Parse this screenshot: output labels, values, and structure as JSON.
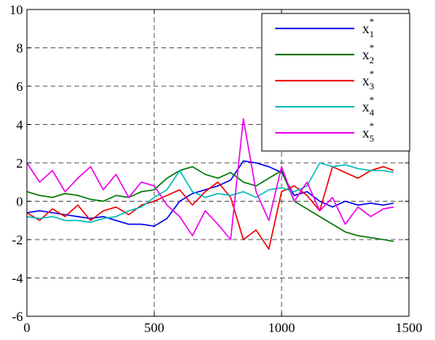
{
  "chart_data": {
    "type": "line",
    "title": "",
    "xlabel": "",
    "ylabel": "",
    "xlim": [
      0,
      1500
    ],
    "ylim": [
      -6,
      10
    ],
    "xticks": [
      0,
      500,
      1000,
      1500
    ],
    "yticks": [
      -6,
      -4,
      -2,
      0,
      2,
      4,
      6,
      8,
      10
    ],
    "grid": true,
    "legend_position": "top-right",
    "x": [
      0,
      50,
      100,
      150,
      200,
      250,
      300,
      350,
      400,
      450,
      500,
      550,
      600,
      650,
      700,
      750,
      800,
      850,
      900,
      950,
      1000,
      1050,
      1100,
      1150,
      1200,
      1250,
      1300,
      1350,
      1400,
      1440
    ],
    "series": [
      {
        "name": "x1*",
        "base": "x",
        "sub": "1",
        "sup": "*",
        "color": "#0000ee",
        "values": [
          -0.6,
          -0.5,
          -0.6,
          -0.7,
          -0.8,
          -0.9,
          -0.8,
          -1.0,
          -1.2,
          -1.2,
          -1.3,
          -0.9,
          0.0,
          0.4,
          0.6,
          0.8,
          1.1,
          2.1,
          2.0,
          1.8,
          1.5,
          0.3,
          0.5,
          0.0,
          -0.3,
          0.0,
          -0.2,
          -0.1,
          -0.2,
          -0.1
        ]
      },
      {
        "name": "x2*",
        "base": "x",
        "sub": "2",
        "sup": "*",
        "color": "#007700",
        "values": [
          0.5,
          0.3,
          0.2,
          0.4,
          0.3,
          0.1,
          0.0,
          0.3,
          0.2,
          0.5,
          0.6,
          1.2,
          1.6,
          1.8,
          1.4,
          1.2,
          1.5,
          1.0,
          0.8,
          1.2,
          1.6,
          0.0,
          -0.4,
          -0.8,
          -1.2,
          -1.6,
          -1.8,
          -1.9,
          -2.0,
          -2.1
        ]
      },
      {
        "name": "x3*",
        "base": "x",
        "sub": "3",
        "sup": "*",
        "color": "#ee0000",
        "values": [
          -0.6,
          -1.0,
          -0.4,
          -0.8,
          -0.2,
          -1.0,
          -0.5,
          -0.3,
          -0.7,
          -0.2,
          0.0,
          0.3,
          0.6,
          -0.2,
          0.5,
          1.0,
          0.2,
          -2.0,
          -1.5,
          -2.5,
          0.5,
          0.8,
          0.3,
          -0.5,
          1.8,
          1.5,
          1.2,
          1.6,
          1.8,
          1.6
        ]
      },
      {
        "name": "x4*",
        "base": "x",
        "sub": "4",
        "sup": "*",
        "color": "#00bbbb",
        "values": [
          -0.8,
          -0.9,
          -0.8,
          -1.0,
          -1.0,
          -1.1,
          -0.9,
          -0.8,
          -0.5,
          -0.3,
          0.2,
          0.6,
          1.6,
          0.5,
          0.2,
          0.4,
          0.3,
          0.5,
          0.2,
          0.6,
          0.7,
          0.5,
          0.8,
          2.0,
          1.8,
          1.9,
          1.7,
          1.6,
          1.6,
          1.5
        ]
      },
      {
        "name": "x5*",
        "base": "x",
        "sub": "5",
        "sup": "*",
        "color": "#ee00ee",
        "values": [
          2.0,
          1.0,
          1.6,
          0.5,
          1.2,
          1.8,
          0.6,
          1.4,
          0.2,
          1.0,
          0.8,
          -0.2,
          -0.8,
          -1.8,
          -0.5,
          -1.2,
          -2.0,
          4.3,
          0.5,
          -1.0,
          1.8,
          0.0,
          1.0,
          -0.5,
          0.2,
          -1.2,
          -0.3,
          -0.8,
          -0.4,
          -0.3
        ]
      }
    ]
  }
}
